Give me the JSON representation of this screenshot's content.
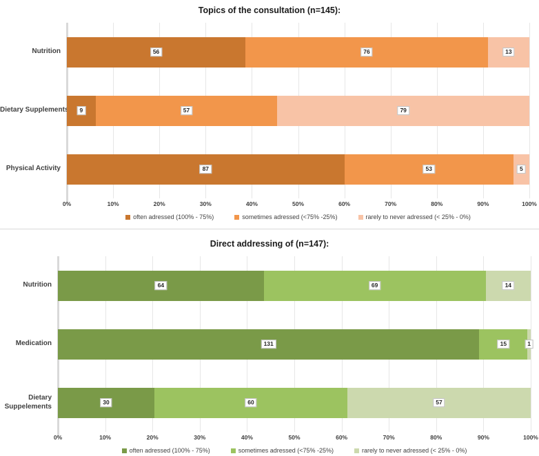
{
  "chart_data": [
    {
      "type": "bar",
      "orientation": "horizontal",
      "stacked": true,
      "title": "Topics of the consultation (n=145):",
      "n": 145,
      "categories": [
        "Nutrition",
        "Dietary Supplements",
        "Physical Activity"
      ],
      "series": [
        {
          "name": "often adressed (100% - 75%)",
          "color": "#C9772F",
          "values": [
            56,
            9,
            87
          ]
        },
        {
          "name": "sometimes adressed (<75% -25%)",
          "color": "#F2964B",
          "values": [
            76,
            57,
            53
          ]
        },
        {
          "name": "rarely to never adressed (< 25% - 0%)",
          "color": "#F8C3A6",
          "values": [
            13,
            79,
            5
          ]
        }
      ],
      "x_ticks": [
        "0%",
        "10%",
        "20%",
        "30%",
        "40%",
        "50%",
        "60%",
        "70%",
        "80%",
        "90%",
        "100%"
      ],
      "xlim": [
        0,
        100
      ],
      "grid": true,
      "legend_position": "bottom",
      "data_labels": true,
      "axis_color": "#D9D9D9",
      "gridline_color": "#E6E6E6"
    },
    {
      "type": "bar",
      "orientation": "horizontal",
      "stacked": true,
      "title": "Direct addressing of (n=147):",
      "n": 147,
      "categories": [
        "Nutrition",
        "Medication",
        "Dietary Suppelements"
      ],
      "series": [
        {
          "name": "often adressed (100% - 75%)",
          "color": "#7A9A48",
          "values": [
            64,
            131,
            30
          ]
        },
        {
          "name": "sometimes adressed (<75% -25%)",
          "color": "#9CC360",
          "values": [
            69,
            15,
            60
          ]
        },
        {
          "name": "rarely to never adressed (< 25% - 0%)",
          "color": "#CCD9AE",
          "values": [
            14,
            1,
            57
          ]
        }
      ],
      "x_ticks": [
        "0%",
        "10%",
        "20%",
        "30%",
        "40%",
        "50%",
        "60%",
        "70%",
        "80%",
        "90%",
        "100%"
      ],
      "xlim": [
        0,
        100
      ],
      "grid": true,
      "legend_position": "bottom",
      "data_labels": true,
      "axis_color": "#D9D9D9",
      "gridline_color": "#E6E6E6"
    }
  ]
}
